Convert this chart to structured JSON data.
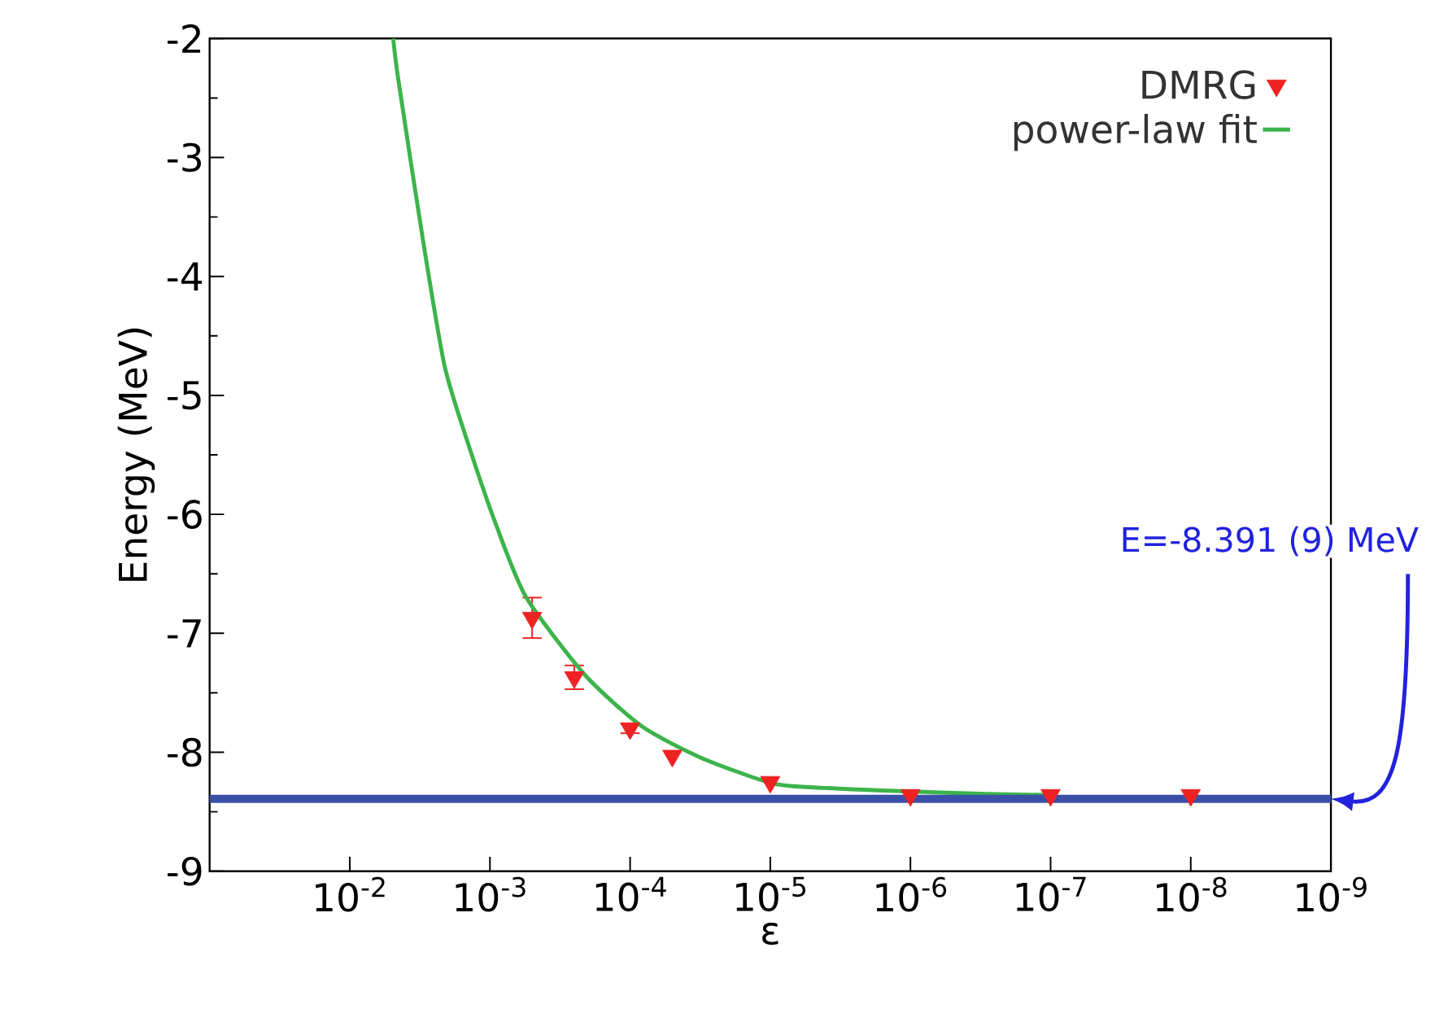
{
  "chart_data": {
    "type": "scatter",
    "xlabel": "ε",
    "ylabel": "Energy (MeV)",
    "log": "x",
    "xlim": [
      0.1,
      1e-09
    ],
    "ylim": [
      -9,
      -2
    ],
    "xticks": [
      {
        "value": 0.01,
        "label": "10$^{-2}$"
      },
      {
        "value": 0.001,
        "label": "10$^{-3}$"
      },
      {
        "value": 0.0001,
        "label": "10$^{-4}$"
      },
      {
        "value": 1e-05,
        "label": "10$^{-5}$"
      },
      {
        "value": 1e-06,
        "label": "10$^{-6}$"
      },
      {
        "value": 1e-07,
        "label": "10$^{-7}$"
      },
      {
        "value": 1e-08,
        "label": "10$^{-8}$"
      },
      {
        "value": 1e-09,
        "label": "10$^{-9}$"
      }
    ],
    "yticks": [
      -9,
      -8,
      -7,
      -6,
      -5,
      -4,
      -3,
      -2
    ],
    "legend": "top right",
    "grid": false,
    "series": [
      {
        "name": "DMRG",
        "color": "#ee2222",
        "marker": "triangle",
        "x": [
          0.0005,
          0.00025,
          0.0001,
          5e-05,
          1e-05,
          1e-06,
          1e-07,
          1e-08
        ],
        "values": [
          -6.87,
          -7.37,
          -7.8,
          -8.03,
          -8.25,
          -8.36,
          -8.36,
          -8.36
        ],
        "errors": [
          0.17,
          0.1,
          0.04,
          null,
          null,
          null,
          null,
          null
        ]
      },
      {
        "name": "power-law fit",
        "type": "line",
        "color": "#3cb44b",
        "marker": "none",
        "line_style": "solid",
        "x": [
          0.0049,
          0.0045,
          0.003,
          0.0021,
          0.0014,
          0.00089,
          0.00055,
          0.00021,
          8.3e-05,
          3.2e-05,
          9.8e-06,
          4.1e-06,
          1e-06,
          2.9e-07,
          1e-07
        ],
        "values": [
          -2.0,
          -2.35,
          -3.7,
          -4.76,
          -5.44,
          -6.11,
          -6.7,
          -7.35,
          -7.78,
          -8.04,
          -8.26,
          -8.3,
          -8.33,
          -8.35,
          -8.36
        ]
      }
    ],
    "ref_lines": [
      {
        "axis": "y",
        "value": -8.391,
        "color": "#3a4fa8"
      }
    ],
    "annotations": [
      "E=-8.391 (9) MeV"
    ]
  }
}
